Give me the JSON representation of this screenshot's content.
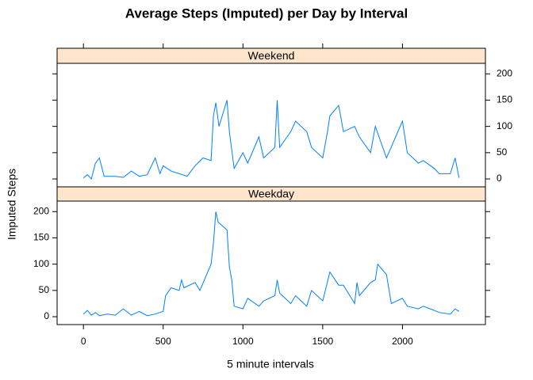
{
  "chart_data": {
    "type": "line",
    "title": "Average Steps (Imputed) per Day by Interval",
    "xlabel": "5 minute intervals",
    "ylabel": "Imputed Steps",
    "xlim": [
      -165,
      2520
    ],
    "xticks": [
      0,
      500,
      1000,
      1500,
      2000
    ],
    "ylim": [
      -15,
      220
    ],
    "yticks": [
      0,
      50,
      100,
      150,
      200
    ],
    "color": "#0080ff",
    "strip_color": "#ffe5cc",
    "panels": [
      {
        "name": "Weekend",
        "x": [
          0,
          25,
          50,
          75,
          100,
          130,
          200,
          250,
          300,
          350,
          400,
          450,
          480,
          500,
          550,
          600,
          650,
          700,
          750,
          800,
          815,
          830,
          850,
          900,
          915,
          945,
          1000,
          1030,
          1100,
          1130,
          1200,
          1215,
          1230,
          1300,
          1330,
          1400,
          1430,
          1500,
          1530,
          1545,
          1600,
          1630,
          1700,
          1730,
          1800,
          1830,
          1900,
          2000,
          2030,
          2100,
          2130,
          2200,
          2230,
          2300,
          2330,
          2355
        ],
        "values": [
          2,
          8,
          0,
          30,
          40,
          5,
          5,
          3,
          15,
          5,
          8,
          40,
          10,
          25,
          15,
          10,
          5,
          25,
          40,
          35,
          120,
          145,
          100,
          150,
          90,
          20,
          50,
          30,
          80,
          40,
          60,
          150,
          60,
          90,
          110,
          90,
          60,
          40,
          90,
          120,
          140,
          90,
          100,
          80,
          50,
          100,
          40,
          110,
          50,
          30,
          35,
          20,
          10,
          10,
          40,
          2
        ]
      },
      {
        "name": "Weekday",
        "x": [
          0,
          25,
          50,
          75,
          100,
          150,
          200,
          250,
          300,
          350,
          400,
          450,
          500,
          515,
          550,
          600,
          615,
          630,
          700,
          730,
          800,
          815,
          830,
          845,
          900,
          915,
          930,
          945,
          1000,
          1030,
          1100,
          1130,
          1200,
          1215,
          1230,
          1300,
          1330,
          1400,
          1430,
          1500,
          1545,
          1600,
          1630,
          1700,
          1715,
          1730,
          1800,
          1830,
          1845,
          1900,
          1930,
          2000,
          2030,
          2100,
          2130,
          2200,
          2230,
          2300,
          2330,
          2355
        ],
        "values": [
          5,
          12,
          3,
          8,
          2,
          5,
          3,
          15,
          3,
          10,
          2,
          5,
          10,
          40,
          55,
          50,
          70,
          55,
          65,
          50,
          100,
          140,
          200,
          180,
          165,
          95,
          70,
          20,
          15,
          35,
          20,
          30,
          40,
          70,
          45,
          25,
          40,
          20,
          50,
          30,
          85,
          60,
          60,
          25,
          65,
          40,
          65,
          70,
          100,
          80,
          25,
          35,
          20,
          15,
          20,
          12,
          8,
          5,
          15,
          10
        ]
      }
    ]
  }
}
